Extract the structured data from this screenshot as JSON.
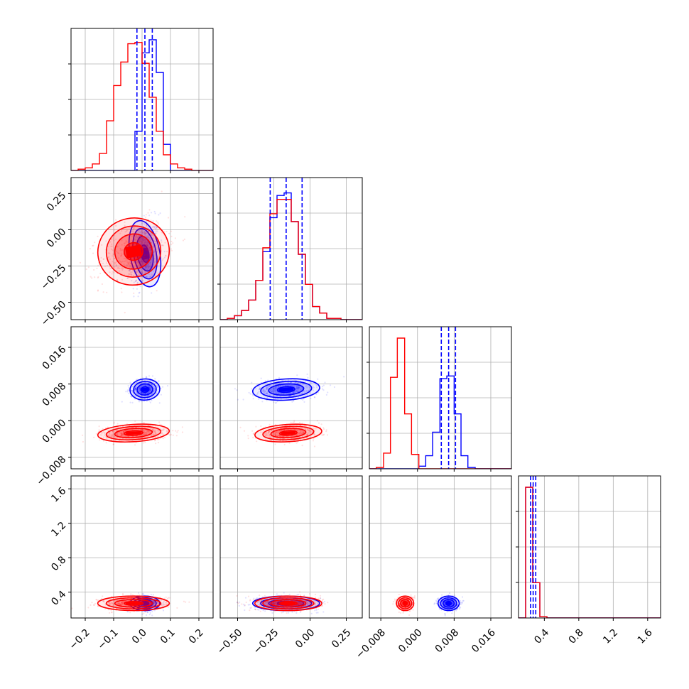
{
  "chart_data": {
    "type": "corner",
    "grid": true,
    "colors": {
      "series_a": "#0000ff",
      "series_b": "#ff0000",
      "grid": "#b0b0b0",
      "frame": "#000000"
    },
    "parameters": [
      {
        "range": [
          -0.25,
          0.25
        ],
        "ticks": [
          -0.2,
          -0.1,
          0.0,
          0.1,
          0.2
        ],
        "tick_labels": [
          "−0.2",
          "−0.1",
          "0.0",
          "0.1",
          "0.2"
        ]
      },
      {
        "range": [
          -0.62,
          0.36
        ],
        "ticks": [
          -0.5,
          -0.25,
          0.0,
          0.25
        ],
        "tick_labels": [
          "−0.50",
          "−0.25",
          "0.00",
          "0.25"
        ]
      },
      {
        "range": [
          -0.0105,
          0.0205
        ],
        "ticks": [
          -0.008,
          0.0,
          0.008,
          0.016
        ],
        "tick_labels": [
          "−0.008",
          "0.000",
          "0.008",
          "0.016"
        ]
      },
      {
        "range": [
          0.1,
          1.75
        ],
        "ticks": [
          0.4,
          0.8,
          1.2,
          1.6
        ],
        "tick_labels": [
          "0.4",
          "0.8",
          "1.2",
          "1.6"
        ]
      }
    ],
    "series": [
      {
        "color": "#0000ff",
        "means": [
          0.01,
          -0.165,
          0.0068,
          0.27
        ],
        "sigmas": [
          0.025,
          0.11,
          0.0011,
          0.04
        ],
        "quantile_lines": [
          [
            -0.018,
            0.01,
            0.036
          ],
          [
            -0.275,
            -0.165,
            -0.055
          ],
          [
            0.0052,
            0.0068,
            0.0083
          ],
          [
            0.24,
            0.27,
            0.3
          ]
        ],
        "hist_bins": [
          [
            -0.25,
            -0.225,
            -0.2,
            -0.175,
            -0.15,
            -0.125,
            -0.1,
            -0.075,
            -0.05,
            -0.025,
            0.0,
            0.025,
            0.05,
            0.075,
            0.1,
            0.125,
            0.15,
            0.175,
            0.2,
            0.225,
            0.25
          ],
          [
            -0.62,
            -0.571,
            -0.522,
            -0.473,
            -0.424,
            -0.375,
            -0.326,
            -0.277,
            -0.228,
            -0.179,
            -0.13,
            -0.081,
            -0.032,
            0.017,
            0.066,
            0.115,
            0.164,
            0.213,
            0.262,
            0.311,
            0.36
          ],
          [
            -0.0105,
            -0.009,
            -0.0074,
            -0.0059,
            -0.0044,
            -0.0028,
            -0.0013,
            0.0003,
            0.0018,
            0.0033,
            0.0049,
            0.0064,
            0.008,
            0.0095,
            0.011,
            0.0126,
            0.0141,
            0.0156,
            0.0172,
            0.0187,
            0.0205
          ],
          [
            0.1,
            0.1825,
            0.265,
            0.3475,
            0.43,
            0.5125,
            0.595,
            0.6775,
            0.76,
            0.8425,
            0.925,
            1.0075,
            1.09,
            1.1725,
            1.255,
            1.3375,
            1.42,
            1.5025,
            1.585,
            1.6675,
            1.75
          ]
        ],
        "hist_counts": [
          [
            0,
            0,
            0,
            0,
            0,
            0,
            0,
            0,
            0,
            0.3,
            0.9,
            1.0,
            0.75,
            0.2,
            0,
            0,
            0,
            0,
            0,
            0
          ],
          [
            0,
            0.01,
            0.03,
            0.07,
            0.15,
            0.3,
            0.52,
            0.78,
            0.95,
            0.97,
            0.75,
            0.5,
            0.27,
            0.1,
            0.05,
            0.01,
            0.01,
            0,
            0,
            0
          ],
          [
            0,
            0,
            0,
            0,
            0,
            0,
            0,
            0.02,
            0.1,
            0.28,
            0.69,
            0.71,
            0.42,
            0.1,
            0.01,
            0,
            0,
            0,
            0,
            0
          ],
          [
            0,
            1.0,
            0.27,
            0.01,
            0,
            0,
            0,
            0,
            0,
            0,
            0,
            0,
            0,
            0,
            0,
            0,
            0,
            0,
            0,
            0
          ]
        ]
      },
      {
        "color": "#ff0000",
        "means": [
          -0.03,
          -0.15,
          -0.0027,
          0.27
        ],
        "sigmas": [
          0.06,
          0.11,
          0.0009,
          0.04
        ],
        "hist_counts": [
          [
            0,
            0.01,
            0.02,
            0.05,
            0.13,
            0.38,
            0.65,
            0.83,
            0.97,
            0.98,
            0.82,
            0.56,
            0.3,
            0.12,
            0.05,
            0.02,
            0.01,
            0,
            0,
            0
          ],
          [
            0,
            0.01,
            0.03,
            0.07,
            0.15,
            0.3,
            0.55,
            0.81,
            0.92,
            0.92,
            0.75,
            0.5,
            0.27,
            0.1,
            0.05,
            0.01,
            0.01,
            0,
            0,
            0
          ],
          [
            0,
            0.01,
            0.12,
            0.7,
            1.0,
            0.42,
            0.11,
            0,
            0,
            0,
            0,
            0,
            0,
            0,
            0,
            0,
            0,
            0,
            0,
            0
          ],
          [
            0,
            1.0,
            0.27,
            0.01,
            0,
            0,
            0,
            0,
            0,
            0,
            0,
            0,
            0,
            0,
            0,
            0,
            0,
            0,
            0,
            0
          ]
        ]
      }
    ]
  }
}
